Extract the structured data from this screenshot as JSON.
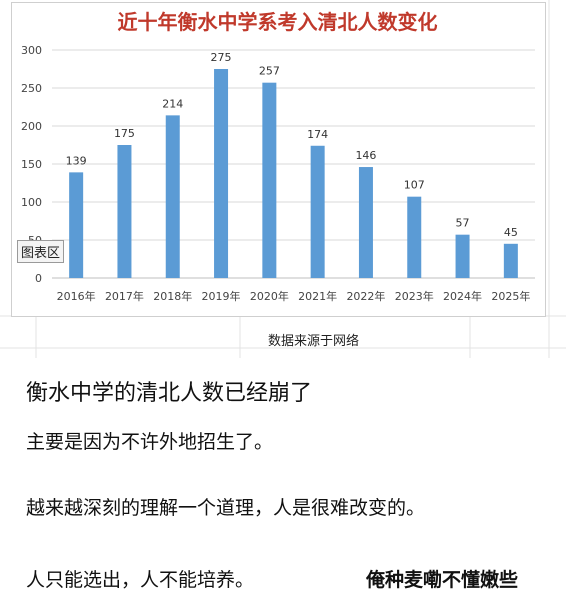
{
  "chart_data": {
    "type": "bar",
    "title": "近十年衡水中学系考入清北人数变化",
    "categories": [
      "2016年",
      "2017年",
      "2018年",
      "2019年",
      "2020年",
      "2021年",
      "2022年",
      "2023年",
      "2024年",
      "2025年"
    ],
    "values": [
      139,
      175,
      214,
      275,
      257,
      174,
      146,
      107,
      57,
      45
    ],
    "ylim": [
      0,
      300
    ],
    "yticks": [
      0,
      50,
      100,
      150,
      200,
      250,
      300
    ],
    "bar_color": "#5b9bd5",
    "grid": true,
    "legend": "none"
  },
  "chart_tag": "图表区",
  "source": "数据来源于网络",
  "post": {
    "heading": "衡水中学的清北人数已经崩了",
    "lines": [
      "主要是因为不许外地招生了。",
      "越来越深刻的理解一个道理，人是很难改变的。",
      "人只能选出，人不能培养。"
    ],
    "signature": "俺种麦嘞不懂嫩些"
  },
  "colors": {
    "title": "#c0392b",
    "bar": "#5b9bd5",
    "grid": "#d9d9d9"
  }
}
